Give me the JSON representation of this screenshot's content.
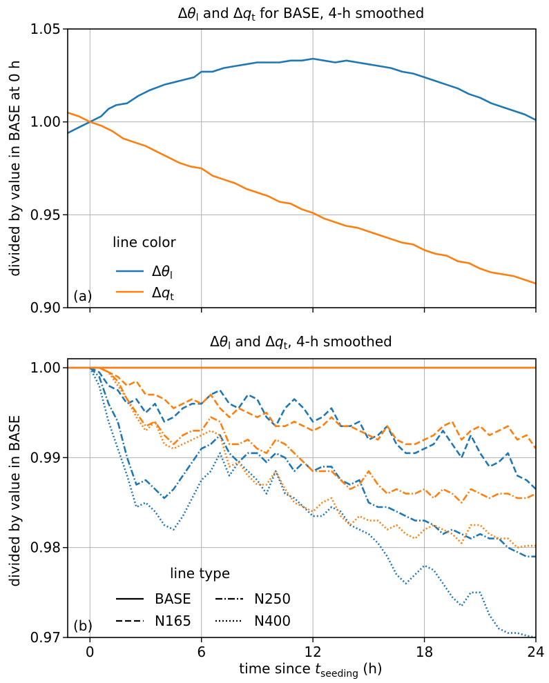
{
  "chart_data": [
    {
      "type": "line",
      "panel_label": "(a)",
      "title": "Δθ_l and Δq_t for BASE, 4-h smoothed",
      "title_parts": [
        "Δ",
        "θ",
        "l",
        " and Δ",
        "q",
        "t",
        " for BASE, 4-h smoothed"
      ],
      "ylabel": "divided by value in BASE at 0 h",
      "xlim": [
        -1.2,
        24
      ],
      "ylim": [
        0.9,
        1.05
      ],
      "yticks": [
        "0.90",
        "0.95",
        "1.00",
        "1.05"
      ],
      "xticks": [
        0,
        6,
        12,
        18,
        24
      ],
      "grid": true,
      "legend": {
        "title": "line color",
        "placement": "lower-left",
        "entries": [
          "Δθl",
          "Δqt"
        ]
      },
      "series": [
        {
          "name": "Δθl",
          "color": "#1f77b4",
          "x": [
            -1.2,
            -0.6,
            0,
            0.6,
            1,
            1.4,
            2,
            2.6,
            3.2,
            4,
            4.8,
            5.6,
            6,
            6.6,
            7.2,
            7.8,
            8.4,
            9,
            9.6,
            10.2,
            10.8,
            11.4,
            12,
            12.6,
            13.2,
            13.8,
            14.4,
            15,
            15.6,
            16.2,
            16.8,
            17.4,
            18,
            18.6,
            19.2,
            19.8,
            20.4,
            21,
            21.6,
            22.2,
            22.8,
            23.4,
            24
          ],
          "y": [
            0.994,
            0.997,
            1.0,
            1.003,
            1.007,
            1.009,
            1.01,
            1.014,
            1.017,
            1.02,
            1.022,
            1.024,
            1.027,
            1.027,
            1.029,
            1.03,
            1.031,
            1.032,
            1.032,
            1.032,
            1.033,
            1.033,
            1.034,
            1.033,
            1.032,
            1.033,
            1.032,
            1.031,
            1.03,
            1.029,
            1.027,
            1.026,
            1.024,
            1.022,
            1.02,
            1.018,
            1.015,
            1.013,
            1.01,
            1.008,
            1.006,
            1.004,
            1.001
          ]
        },
        {
          "name": "Δqt",
          "color": "#ff7f0e",
          "x": [
            -1.2,
            -0.6,
            0,
            0.6,
            1.2,
            1.8,
            2.4,
            3,
            3.6,
            4.2,
            4.8,
            5.4,
            6,
            6.6,
            7.2,
            7.8,
            8.4,
            9,
            9.6,
            10.2,
            10.8,
            11.4,
            12,
            12.6,
            13.2,
            13.8,
            14.4,
            15,
            15.6,
            16.2,
            16.8,
            17.4,
            18,
            18.6,
            19.2,
            19.8,
            20.4,
            21,
            21.6,
            22.2,
            22.8,
            23.4,
            24
          ],
          "y": [
            1.005,
            1.003,
            1.0,
            0.998,
            0.995,
            0.991,
            0.989,
            0.987,
            0.984,
            0.981,
            0.978,
            0.976,
            0.975,
            0.971,
            0.969,
            0.967,
            0.964,
            0.962,
            0.96,
            0.957,
            0.956,
            0.953,
            0.951,
            0.948,
            0.946,
            0.944,
            0.943,
            0.941,
            0.939,
            0.937,
            0.935,
            0.934,
            0.931,
            0.929,
            0.928,
            0.925,
            0.924,
            0.921,
            0.919,
            0.918,
            0.917,
            0.915,
            0.913
          ]
        }
      ]
    },
    {
      "type": "line",
      "panel_label": "(b)",
      "title": "Δθ_l and Δq_t, 4-h smoothed",
      "title_parts": [
        "Δ",
        "θ",
        "l",
        " and Δ",
        "q",
        "t",
        ", 4-h smoothed"
      ],
      "ylabel": "divided by value in BASE",
      "xlabel": "time since t_seeding (h)",
      "xlabel_parts": [
        "time since ",
        "t",
        "seeding",
        " (h)"
      ],
      "xlim": [
        -1.2,
        24
      ],
      "ylim": [
        0.97,
        1.001
      ],
      "yticks": [
        "0.97",
        "0.98",
        "0.99",
        "1.00"
      ],
      "xticks": [
        0,
        6,
        12,
        18,
        24
      ],
      "grid": true,
      "legend": {
        "title": "line type",
        "placement": "lower-left",
        "entries": [
          "BASE",
          "N165",
          "N250",
          "N400"
        ]
      },
      "series": [
        {
          "name": "BASE Δθl",
          "color": "#1f77b4",
          "dash": "solid",
          "x": [
            -1.2,
            24
          ],
          "y": [
            1.0,
            1.0
          ]
        },
        {
          "name": "BASE Δqt",
          "color": "#ff7f0e",
          "dash": "solid",
          "x": [
            -1.2,
            24
          ],
          "y": [
            1.0,
            1.0
          ]
        },
        {
          "name": "N165 Δθl",
          "color": "#1f77b4",
          "dash": "dashed",
          "x": [
            0,
            0.5,
            1,
            1.5,
            2,
            2.5,
            3,
            3.5,
            4,
            4.5,
            5,
            5.5,
            6,
            6.5,
            7,
            7.5,
            8,
            8.5,
            9,
            9.5,
            10,
            10.5,
            11,
            11.5,
            12,
            12.5,
            13,
            13.5,
            14,
            14.5,
            15,
            15.5,
            16,
            16.5,
            17,
            17.5,
            18,
            18.5,
            19,
            19.5,
            20,
            20.5,
            21,
            21.5,
            22,
            22.5,
            23,
            23.5,
            24
          ],
          "y": [
            1.0,
            0.9995,
            0.998,
            0.9975,
            0.996,
            0.9965,
            0.995,
            0.996,
            0.994,
            0.9945,
            0.9955,
            0.996,
            0.996,
            0.997,
            0.9975,
            0.996,
            0.9955,
            0.997,
            0.9965,
            0.9945,
            0.9935,
            0.9955,
            0.9965,
            0.9955,
            0.994,
            0.9945,
            0.9955,
            0.9935,
            0.9935,
            0.994,
            0.992,
            0.9925,
            0.9935,
            0.9915,
            0.9905,
            0.9905,
            0.991,
            0.9915,
            0.993,
            0.9915,
            0.99,
            0.9925,
            0.9905,
            0.989,
            0.9895,
            0.9905,
            0.988,
            0.9875,
            0.9865
          ]
        },
        {
          "name": "N165 Δqt",
          "color": "#ff7f0e",
          "dash": "dashed",
          "x": [
            0,
            0.5,
            1,
            1.5,
            2,
            2.5,
            3,
            3.5,
            4,
            4.5,
            5,
            5.5,
            6,
            6.5,
            7,
            7.5,
            8,
            8.5,
            9,
            9.5,
            10,
            10.5,
            11,
            11.5,
            12,
            12.5,
            13,
            13.5,
            14,
            14.5,
            15,
            15.5,
            16,
            16.5,
            17,
            17.5,
            18,
            18.5,
            19,
            19.5,
            20,
            20.5,
            21,
            21.5,
            22,
            22.5,
            23,
            23.5,
            24
          ],
          "y": [
            1.0,
            1.0,
            0.9995,
            0.999,
            0.998,
            0.9985,
            0.997,
            0.997,
            0.9965,
            0.9955,
            0.996,
            0.9965,
            0.996,
            0.997,
            0.9955,
            0.9945,
            0.9955,
            0.995,
            0.9945,
            0.995,
            0.9935,
            0.9935,
            0.994,
            0.9935,
            0.993,
            0.9935,
            0.9945,
            0.9935,
            0.9935,
            0.993,
            0.9925,
            0.992,
            0.9935,
            0.992,
            0.9915,
            0.9915,
            0.992,
            0.9925,
            0.9935,
            0.994,
            0.992,
            0.993,
            0.9935,
            0.9925,
            0.993,
            0.9935,
            0.992,
            0.9925,
            0.991
          ]
        },
        {
          "name": "N250 Δθl",
          "color": "#1f77b4",
          "dash": "dashdot",
          "x": [
            0,
            0.5,
            1,
            1.5,
            2,
            2.5,
            3,
            3.5,
            4,
            4.5,
            5,
            5.5,
            6,
            6.5,
            7,
            7.5,
            8,
            8.5,
            9,
            9.5,
            10,
            10.5,
            11,
            11.5,
            12,
            12.5,
            13,
            13.5,
            14,
            14.5,
            15,
            15.5,
            16,
            16.5,
            17,
            17.5,
            18,
            18.5,
            19,
            19.5,
            20,
            20.5,
            21,
            21.5,
            22,
            22.5,
            23,
            23.5,
            24
          ],
          "y": [
            1.0,
            0.999,
            0.996,
            0.994,
            0.99,
            0.987,
            0.9875,
            0.9865,
            0.9855,
            0.9865,
            0.988,
            0.9895,
            0.991,
            0.9915,
            0.9925,
            0.9905,
            0.9895,
            0.9905,
            0.9905,
            0.9895,
            0.9905,
            0.99,
            0.9885,
            0.9895,
            0.9885,
            0.989,
            0.989,
            0.9875,
            0.987,
            0.9875,
            0.985,
            0.9845,
            0.9845,
            0.984,
            0.9835,
            0.983,
            0.983,
            0.9825,
            0.9815,
            0.982,
            0.9815,
            0.981,
            0.9815,
            0.981,
            0.981,
            0.98,
            0.9795,
            0.979,
            0.979
          ]
        },
        {
          "name": "N250 Δqt",
          "color": "#ff7f0e",
          "dash": "dashdot",
          "x": [
            0,
            0.5,
            1,
            1.5,
            2,
            2.5,
            3,
            3.5,
            4,
            4.5,
            5,
            5.5,
            6,
            6.5,
            7,
            7.5,
            8,
            8.5,
            9,
            9.5,
            10,
            10.5,
            11,
            11.5,
            12,
            12.5,
            13,
            13.5,
            14,
            14.5,
            15,
            15.5,
            16,
            16.5,
            17,
            17.5,
            18,
            18.5,
            19,
            19.5,
            20,
            20.5,
            21,
            21.5,
            22,
            22.5,
            23,
            23.5,
            24
          ],
          "y": [
            1.0,
            1.0,
            0.9995,
            0.9985,
            0.9965,
            0.995,
            0.9935,
            0.994,
            0.9925,
            0.9915,
            0.9925,
            0.993,
            0.993,
            0.9945,
            0.994,
            0.9915,
            0.9915,
            0.992,
            0.991,
            0.9905,
            0.992,
            0.9915,
            0.9905,
            0.9895,
            0.9885,
            0.9885,
            0.9885,
            0.9875,
            0.9865,
            0.987,
            0.9885,
            0.987,
            0.986,
            0.9865,
            0.986,
            0.986,
            0.9865,
            0.9855,
            0.9865,
            0.986,
            0.985,
            0.9865,
            0.986,
            0.9855,
            0.986,
            0.986,
            0.9855,
            0.9855,
            0.986
          ]
        },
        {
          "name": "N400 Δθl",
          "color": "#1f77b4",
          "dash": "dotted",
          "x": [
            0,
            0.5,
            1,
            1.5,
            2,
            2.5,
            3,
            3.5,
            4,
            4.5,
            5,
            5.5,
            6,
            6.5,
            7,
            7.5,
            8,
            8.5,
            9,
            9.5,
            10,
            10.5,
            11,
            11.5,
            12,
            12.5,
            13,
            13.5,
            14,
            14.5,
            15,
            15.5,
            16,
            16.5,
            17,
            17.5,
            18,
            18.5,
            19,
            19.5,
            20,
            20.5,
            21,
            21.5,
            22,
            22.5,
            23,
            23.5,
            24
          ],
          "y": [
            1.0,
            0.998,
            0.994,
            0.991,
            0.988,
            0.9845,
            0.985,
            0.984,
            0.9825,
            0.982,
            0.9835,
            0.9855,
            0.9875,
            0.9885,
            0.9905,
            0.988,
            0.9895,
            0.9885,
            0.9875,
            0.986,
            0.9885,
            0.986,
            0.9855,
            0.9845,
            0.9835,
            0.9835,
            0.9845,
            0.984,
            0.9825,
            0.982,
            0.9815,
            0.9805,
            0.979,
            0.977,
            0.976,
            0.977,
            0.978,
            0.9775,
            0.976,
            0.9745,
            0.9735,
            0.975,
            0.975,
            0.9725,
            0.971,
            0.9705,
            0.9705,
            0.9702,
            0.97
          ]
        },
        {
          "name": "N400 Δqt",
          "color": "#ff7f0e",
          "dash": "dotted",
          "x": [
            0,
            0.5,
            1,
            1.5,
            2,
            2.5,
            3,
            3.5,
            4,
            4.5,
            5,
            5.5,
            6,
            6.5,
            7,
            7.5,
            8,
            8.5,
            9,
            9.5,
            10,
            10.5,
            11,
            11.5,
            12,
            12.5,
            13,
            13.5,
            14,
            14.5,
            15,
            15.5,
            16,
            16.5,
            17,
            17.5,
            18,
            18.5,
            19,
            19.5,
            20,
            20.5,
            21,
            21.5,
            22,
            22.5,
            23,
            23.5,
            24
          ],
          "y": [
            1.0,
            1.0,
            0.9995,
            0.998,
            0.9965,
            0.9945,
            0.993,
            0.994,
            0.9915,
            0.991,
            0.9915,
            0.992,
            0.9925,
            0.993,
            0.9925,
            0.989,
            0.9895,
            0.988,
            0.987,
            0.987,
            0.9885,
            0.9865,
            0.985,
            0.9845,
            0.984,
            0.985,
            0.9855,
            0.9835,
            0.9825,
            0.9835,
            0.983,
            0.983,
            0.982,
            0.9825,
            0.9815,
            0.981,
            0.982,
            0.9825,
            0.982,
            0.9815,
            0.9805,
            0.9825,
            0.9825,
            0.9815,
            0.981,
            0.981,
            0.98,
            0.9802,
            0.9802
          ]
        }
      ]
    }
  ]
}
